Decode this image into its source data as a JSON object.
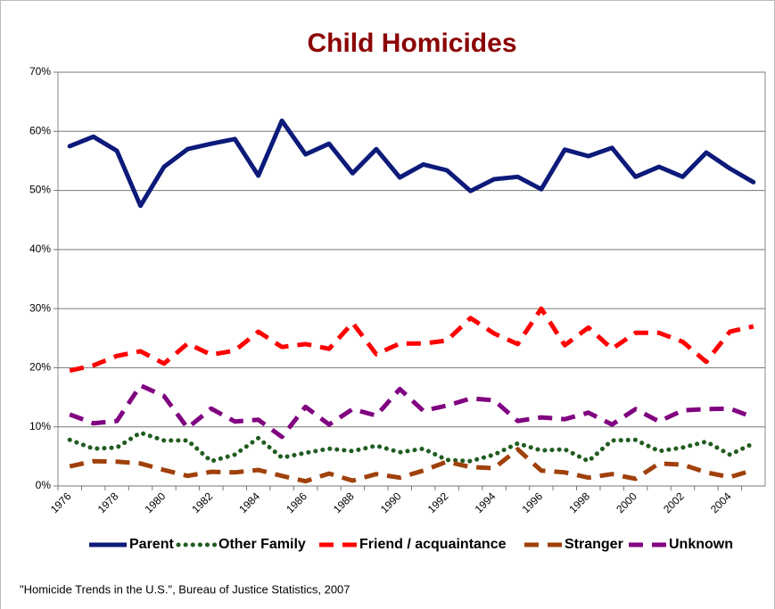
{
  "chart_data": {
    "type": "line",
    "title": "Child Homicides",
    "source": "\"Homicide Trends in the U.S.\", Bureau of Justice Statistics, 2007",
    "categories": [
      "1976",
      null,
      "1978",
      null,
      "1980",
      null,
      "1982",
      null,
      "1984",
      null,
      "1986",
      null,
      "1988",
      null,
      "1990",
      null,
      "1992",
      null,
      "1994",
      null,
      "1996",
      null,
      "1998",
      null,
      "2000",
      null,
      "2002",
      null,
      "2004",
      null
    ],
    "ylim": [
      0,
      70
    ],
    "yticks": [
      {
        "value": 0,
        "label": "0%"
      },
      {
        "value": 10,
        "label": "10%"
      },
      {
        "value": 20,
        "label": "20%"
      },
      {
        "value": 30,
        "label": "30%"
      },
      {
        "value": 40,
        "label": "40%"
      },
      {
        "value": 50,
        "label": "50%"
      },
      {
        "value": 60,
        "label": "60%"
      },
      {
        "value": 70,
        "label": "70%"
      }
    ],
    "grid": true,
    "legend": "bottom",
    "series": [
      {
        "name": "Parent",
        "color": "#0c1a7a",
        "style": "solid",
        "values": [
          57.5,
          59.1,
          56.7,
          47.4,
          54.0,
          57.0,
          57.9,
          58.7,
          52.5,
          61.8,
          56.1,
          57.9,
          52.9,
          57.0,
          52.2,
          54.4,
          53.4,
          49.9,
          51.9,
          52.3,
          50.2,
          56.9,
          55.8,
          57.2,
          52.3,
          54.0,
          52.3,
          56.4,
          53.7,
          51.4
        ]
      },
      {
        "name": "Other Family",
        "color": "#1f5c1f",
        "style": "dotted",
        "values": [
          7.8,
          6.3,
          6.5,
          9.0,
          7.7,
          7.7,
          4.2,
          5.3,
          8.1,
          4.8,
          5.6,
          6.3,
          5.9,
          6.8,
          5.7,
          6.3,
          4.4,
          4.2,
          5.3,
          7.2,
          6.0,
          6.2,
          4.2,
          7.7,
          7.8,
          5.9,
          6.5,
          7.5,
          5.3,
          7.2
        ]
      },
      {
        "name": "Friend / acquaintance",
        "color": "#ff0000",
        "style": "dashed",
        "values": [
          19.5,
          20.4,
          22.0,
          22.8,
          20.7,
          24.1,
          22.2,
          22.9,
          26.1,
          23.5,
          24.0,
          23.2,
          27.6,
          22.3,
          24.1,
          24.1,
          24.6,
          28.4,
          25.8,
          24.0,
          30.0,
          23.8,
          26.8,
          23.2,
          25.9,
          25.9,
          24.4,
          21.0,
          26.1,
          27.0
        ]
      },
      {
        "name": "Stranger",
        "color": "#a0400a",
        "style": "dashed",
        "values": [
          3.3,
          4.2,
          4.1,
          3.8,
          2.7,
          1.7,
          2.4,
          2.3,
          2.7,
          1.7,
          0.8,
          2.1,
          0.9,
          2.0,
          1.4,
          2.6,
          4.1,
          3.2,
          3.0,
          6.2,
          2.6,
          2.3,
          1.4,
          2.0,
          1.2,
          3.8,
          3.6,
          2.3,
          1.5,
          2.7
        ]
      },
      {
        "name": "Unknown",
        "color": "#800080",
        "style": "dashed",
        "values": [
          12.1,
          10.6,
          11.0,
          17.0,
          15.2,
          9.8,
          13.1,
          10.9,
          11.2,
          8.3,
          13.4,
          10.4,
          13.0,
          11.9,
          16.4,
          12.7,
          13.6,
          14.8,
          14.5,
          11.0,
          11.6,
          11.3,
          12.4,
          10.4,
          13.0,
          10.9,
          12.8,
          13.0,
          13.1,
          11.6
        ]
      }
    ]
  }
}
